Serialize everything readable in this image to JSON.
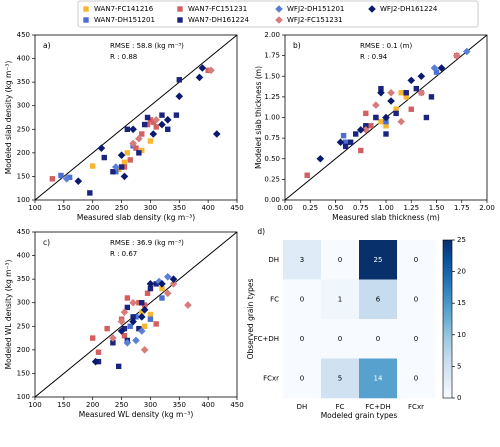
{
  "legend": {
    "loc": "upper center"
  },
  "chart_data": [
    {
      "type": "scatter",
      "panel_label": "a)",
      "rmse": "RMSE : 58.8 (kg m⁻³)",
      "r": "R : 0.88",
      "xlabel": "Measured slab density (kg m⁻³)",
      "ylabel": "Modeled slab density (kg m⁻³)",
      "xlim": [
        100,
        450
      ],
      "ylim": [
        100,
        450
      ],
      "xticks": [
        100,
        150,
        200,
        250,
        300,
        350,
        400,
        450
      ],
      "yticks": [
        100,
        150,
        200,
        250,
        300,
        350,
        400,
        450
      ],
      "identity_line": true,
      "series": [
        {
          "name": "WAN7-FC141216",
          "color": "#f5b731",
          "marker": "square",
          "x": [
            200,
            245,
            255,
            300,
            285,
            260
          ],
          "values": [
            172,
            165,
            180,
            225,
            205,
            200
          ]
        },
        {
          "name": "WAN7-DH151201",
          "color": "#4a6fd0",
          "marker": "square",
          "x": [
            145,
            160,
            270,
            240
          ],
          "values": [
            152,
            148,
            215,
            160
          ]
        },
        {
          "name": "WAN7-FC151231",
          "color": "#d45f60",
          "marker": "square",
          "x": [
            130,
            255,
            265,
            275,
            295,
            300,
            305,
            310,
            285,
            400
          ],
          "values": [
            145,
            170,
            185,
            210,
            260,
            270,
            265,
            255,
            240,
            375
          ]
        },
        {
          "name": "WAN7-DH161224",
          "color": "#1a237e",
          "marker": "square",
          "x": [
            195,
            220,
            235,
            250,
            260,
            280,
            290,
            295,
            320,
            330,
            350,
            345
          ],
          "values": [
            115,
            190,
            160,
            170,
            250,
            200,
            260,
            275,
            280,
            250,
            355,
            280
          ]
        },
        {
          "name": "WFJ2-DH151201",
          "color": "#5a7fd6",
          "marker": "diamond",
          "x": [
            155,
            240
          ],
          "values": [
            145,
            170
          ]
        },
        {
          "name": "WFJ2-FC151231",
          "color": "#d77b7b",
          "marker": "diamond",
          "x": [
            270,
            310,
            405,
            280
          ],
          "values": [
            220,
            270,
            375,
            230
          ]
        },
        {
          "name": "WFJ2-DH161224",
          "color": "#0a1a6e",
          "marker": "diamond",
          "x": [
            175,
            215,
            250,
            270,
            305,
            320,
            330,
            350,
            385,
            415,
            390,
            255
          ],
          "values": [
            140,
            210,
            195,
            250,
            240,
            260,
            270,
            320,
            360,
            240,
            380,
            150
          ]
        }
      ]
    },
    {
      "type": "scatter",
      "panel_label": "b)",
      "rmse": "RMSE : 0.1 (m)",
      "r": "R : 0.94",
      "xlabel": "Measured slab thickness (m)",
      "ylabel": "Modeled slab thickness (m)",
      "xlim": [
        0,
        2
      ],
      "ylim": [
        0,
        2
      ],
      "xticks": [
        {
          "value": 0,
          "label": "0.00"
        },
        {
          "value": 0.25,
          "label": "0.25"
        },
        {
          "value": 0.5,
          "label": "0.50"
        },
        {
          "value": 0.75,
          "label": "0.75"
        },
        {
          "value": 1,
          "label": "1.00"
        },
        {
          "value": 1.25,
          "label": "1.25"
        },
        {
          "value": 1.5,
          "label": "1.50"
        },
        {
          "value": 1.75,
          "label": "1.75"
        },
        {
          "value": 2,
          "label": "2.00"
        }
      ],
      "yticks": [
        {
          "value": 0,
          "label": "0.00"
        },
        {
          "value": 0.25,
          "label": "0.25"
        },
        {
          "value": 0.5,
          "label": "0.50"
        },
        {
          "value": 0.75,
          "label": "0.75"
        },
        {
          "value": 1,
          "label": "1.00"
        },
        {
          "value": 1.25,
          "label": "1.25"
        },
        {
          "value": 1.5,
          "label": "1.50"
        },
        {
          "value": 1.75,
          "label": "1.75"
        },
        {
          "value": 2,
          "label": "2.00"
        }
      ],
      "identity_line": true,
      "series": [
        {
          "name": "WAN7-FC141216",
          "color": "#f5b731",
          "marker": "square",
          "x": [
            1.15,
            1.1,
            1.0,
            1.2,
            0.95
          ],
          "values": [
            1.3,
            1.1,
            0.9,
            1.25,
            0.95
          ]
        },
        {
          "name": "WAN7-DH151201",
          "color": "#4a6fd0",
          "marker": "square",
          "x": [
            0.58,
            0.6,
            1.0,
            1.5
          ],
          "values": [
            0.78,
            0.7,
            0.95,
            1.55
          ]
        },
        {
          "name": "WAN7-FC151231",
          "color": "#d45f60",
          "marker": "square",
          "x": [
            0.22,
            0.75,
            0.85,
            0.9,
            1.2,
            1.25,
            1.35,
            1.7,
            0.8
          ],
          "values": [
            0.3,
            0.6,
            0.9,
            1.0,
            1.3,
            1.1,
            1.3,
            1.75,
            1.05
          ]
        },
        {
          "name": "WAN7-DH161224",
          "color": "#1a237e",
          "marker": "square",
          "x": [
            0.6,
            0.65,
            0.7,
            0.8,
            0.9,
            1.0,
            1.1,
            1.2,
            1.3,
            1.4,
            1.45,
            0.95
          ],
          "values": [
            0.65,
            0.7,
            0.8,
            0.9,
            1.0,
            0.8,
            1.05,
            1.3,
            1.35,
            1.0,
            1.25,
            1.35
          ]
        },
        {
          "name": "WFJ2-DH151201",
          "color": "#5a7fd6",
          "marker": "diamond",
          "x": [
            1.48,
            1.8,
            1.0
          ],
          "values": [
            1.6,
            1.8,
            1.0
          ]
        },
        {
          "name": "WFJ2-FC151231",
          "color": "#d77b7b",
          "marker": "diamond",
          "x": [
            0.8,
            0.9,
            1.05,
            1.15,
            1.35,
            1.7
          ],
          "values": [
            0.85,
            1.15,
            1.3,
            0.95,
            1.3,
            1.75
          ]
        },
        {
          "name": "WFJ2-DH161224",
          "color": "#0a1a6e",
          "marker": "diamond",
          "x": [
            0.35,
            0.55,
            0.75,
            0.95,
            1.0,
            1.25,
            1.35,
            1.55,
            1.05
          ],
          "values": [
            0.5,
            0.7,
            0.85,
            1.3,
            1.0,
            1.45,
            1.5,
            1.6,
            1.2
          ]
        }
      ]
    },
    {
      "type": "scatter",
      "panel_label": "c)",
      "rmse": "RMSE : 36.9 (kg m⁻³)",
      "r": "R : 0.67",
      "xlabel": "Measured WL density (kg m⁻³)",
      "ylabel": "Modeled WL density (kg m⁻³)",
      "xlim": [
        100,
        450
      ],
      "ylim": [
        100,
        450
      ],
      "xticks": [
        100,
        150,
        200,
        250,
        300,
        350,
        400,
        450
      ],
      "yticks": [
        100,
        150,
        200,
        250,
        300,
        350,
        400,
        450
      ],
      "identity_line": true,
      "series": [
        {
          "name": "WAN7-FC141216",
          "color": "#f5b731",
          "marker": "square",
          "x": [
            285,
            290,
            300,
            320
          ],
          "values": [
            280,
            250,
            275,
            330
          ]
        },
        {
          "name": "WAN7-DH151201",
          "color": "#4a6fd0",
          "marker": "square",
          "x": [
            265,
            300,
            320,
            275
          ],
          "values": [
            250,
            265,
            310,
            270
          ]
        },
        {
          "name": "WAN7-FC151231",
          "color": "#d45f60",
          "marker": "square",
          "x": [
            200,
            210,
            225,
            250,
            260,
            280,
            290,
            310,
            295,
            255
          ],
          "values": [
            225,
            195,
            245,
            265,
            310,
            300,
            295,
            255,
            320,
            230
          ]
        },
        {
          "name": "WAN7-DH161224",
          "color": "#1a237e",
          "marker": "square",
          "x": [
            210,
            235,
            245,
            255,
            260,
            270,
            285,
            300,
            310,
            280,
            260
          ],
          "values": [
            175,
            215,
            165,
            245,
            290,
            270,
            300,
            330,
            340,
            245,
            220
          ]
        },
        {
          "name": "WFJ2-DH151201",
          "color": "#5a7fd6",
          "marker": "diamond",
          "x": [
            260,
            275,
            285,
            315,
            330
          ],
          "values": [
            215,
            220,
            240,
            345,
            355
          ]
        },
        {
          "name": "WFJ2-FC151231",
          "color": "#d77b7b",
          "marker": "diamond",
          "x": [
            235,
            255,
            270,
            290,
            340,
            365,
            330,
            250
          ],
          "values": [
            225,
            280,
            300,
            200,
            340,
            295,
            320,
            260
          ]
        },
        {
          "name": "WFJ2-DH161224",
          "color": "#0a1a6e",
          "marker": "diamond",
          "x": [
            205,
            250,
            270,
            285,
            300,
            320,
            340,
            290
          ],
          "values": [
            175,
            240,
            260,
            270,
            340,
            340,
            350,
            285
          ]
        }
      ]
    },
    {
      "type": "heatmap",
      "panel_label": "d)",
      "xlabel": "Modeled grain types",
      "ylabel": "Observed grain types",
      "x_categories": [
        "DH",
        "FC",
        "FC+DH",
        "FCxr"
      ],
      "y_categories": [
        "DH",
        "FC",
        "FC+DH",
        "FCxr"
      ],
      "values": [
        [
          3,
          0,
          25,
          0
        ],
        [
          0,
          1,
          6,
          0
        ],
        [
          0,
          0,
          0,
          0
        ],
        [
          0,
          5,
          14,
          0
        ]
      ],
      "colormap": "Blues",
      "clim": [
        0,
        25
      ],
      "cticks": [
        0,
        5,
        10,
        15,
        20,
        25
      ]
    }
  ]
}
